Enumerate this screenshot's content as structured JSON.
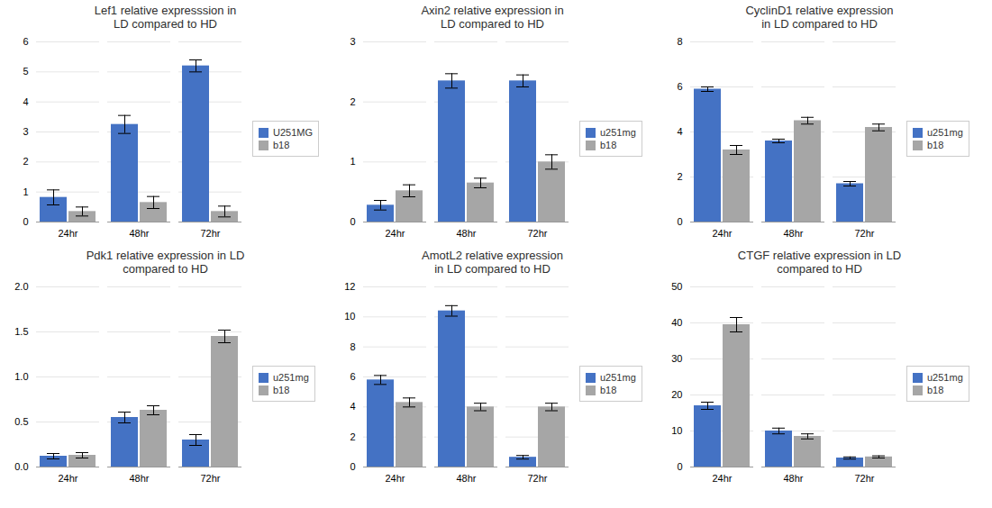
{
  "chart_data": [
    {
      "type": "bar",
      "title": "Lef1 relative expresssion in\nLD compared to HD",
      "categories": [
        "24hr",
        "48hr",
        "72hr"
      ],
      "series": [
        {
          "name": "U251MG",
          "color": "#4472c4",
          "values": [
            0.82,
            3.25,
            5.2
          ],
          "errors": [
            0.25,
            0.3,
            0.2
          ]
        },
        {
          "name": "b18",
          "color": "#a6a6a6",
          "values": [
            0.35,
            0.65,
            0.35
          ],
          "errors": [
            0.15,
            0.2,
            0.18
          ]
        }
      ],
      "ylim": [
        0,
        6
      ],
      "yticks": [
        0,
        1,
        2,
        3,
        4,
        5,
        6
      ],
      "grid": true,
      "legend": "right"
    },
    {
      "type": "bar",
      "title": "Axin2 relative expression in\nLD compared to HD",
      "categories": [
        "24hr",
        "48hr",
        "72hr"
      ],
      "series": [
        {
          "name": "u251mg",
          "color": "#4472c4",
          "values": [
            0.28,
            2.35,
            2.35
          ],
          "errors": [
            0.08,
            0.12,
            0.1
          ]
        },
        {
          "name": "b18",
          "color": "#a6a6a6",
          "values": [
            0.52,
            0.65,
            1.0
          ],
          "errors": [
            0.1,
            0.08,
            0.12
          ]
        }
      ],
      "ylim": [
        0,
        3
      ],
      "yticks": [
        0,
        1,
        2,
        3
      ],
      "grid": true,
      "legend": "right"
    },
    {
      "type": "bar",
      "title": "CyclinD1 relative expression\nin LD compared to HD",
      "categories": [
        "24hr",
        "48hr",
        "72hr"
      ],
      "series": [
        {
          "name": "u251mg",
          "color": "#4472c4",
          "values": [
            5.9,
            3.6,
            1.7
          ],
          "errors": [
            0.1,
            0.08,
            0.1
          ]
        },
        {
          "name": "b18",
          "color": "#a6a6a6",
          "values": [
            3.2,
            4.5,
            4.2
          ],
          "errors": [
            0.2,
            0.15,
            0.15
          ]
        }
      ],
      "ylim": [
        0,
        8
      ],
      "yticks": [
        0,
        2,
        4,
        6,
        8
      ],
      "grid": true,
      "legend": "right"
    },
    {
      "type": "bar",
      "title": "Pdk1 relative expression in LD\ncompared to HD",
      "categories": [
        "24hr",
        "48hr",
        "72hr"
      ],
      "series": [
        {
          "name": "u251mg",
          "color": "#4472c4",
          "values": [
            0.12,
            0.55,
            0.3
          ],
          "errors": [
            0.03,
            0.06,
            0.06
          ]
        },
        {
          "name": "b18",
          "color": "#a6a6a6",
          "values": [
            0.13,
            0.63,
            1.45
          ],
          "errors": [
            0.03,
            0.05,
            0.07
          ]
        }
      ],
      "ylim": [
        0,
        2
      ],
      "yticks": [
        {
          "value": 0,
          "label": "0.0"
        },
        0.5,
        {
          "value": 1.0,
          "label": "1.0"
        },
        1.5,
        {
          "value": 2.0,
          "label": "2.0"
        }
      ],
      "grid": true,
      "legend": "right"
    },
    {
      "type": "bar",
      "title": "AmotL2 relative expression\nin LD compared to HD",
      "categories": [
        "24hr",
        "48hr",
        "72hr"
      ],
      "series": [
        {
          "name": "u251mg",
          "color": "#4472c4",
          "values": [
            5.8,
            10.4,
            0.65
          ],
          "errors": [
            0.3,
            0.35,
            0.12
          ]
        },
        {
          "name": "b18",
          "color": "#a6a6a6",
          "values": [
            4.3,
            4.0,
            4.0
          ],
          "errors": [
            0.3,
            0.25,
            0.25
          ]
        }
      ],
      "ylim": [
        0,
        12
      ],
      "yticks": [
        0,
        2,
        4,
        6,
        8,
        10,
        12
      ],
      "grid": true,
      "legend": "right"
    },
    {
      "type": "bar",
      "title": "CTGF relative expression in LD\ncompared to HD",
      "categories": [
        "24hr",
        "48hr",
        "72hr"
      ],
      "series": [
        {
          "name": "u251mg",
          "color": "#4472c4",
          "values": [
            17.0,
            10.0,
            2.5
          ],
          "errors": [
            1.0,
            0.8,
            0.3
          ]
        },
        {
          "name": "b18",
          "color": "#a6a6a6",
          "values": [
            39.5,
            8.5,
            2.8
          ],
          "errors": [
            2.0,
            0.7,
            0.3
          ]
        }
      ],
      "ylim": [
        0,
        50
      ],
      "yticks": [
        0,
        10,
        20,
        30,
        40,
        50
      ],
      "grid": true,
      "legend": "right"
    }
  ]
}
